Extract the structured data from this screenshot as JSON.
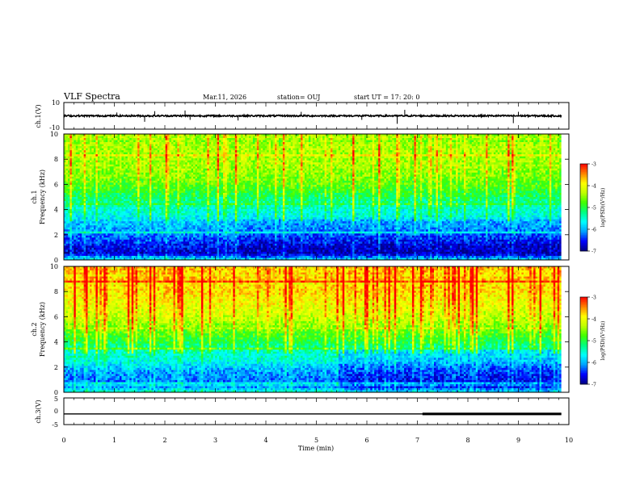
{
  "header": {
    "title": "VLF Spectra",
    "date": "Mar.11, 2026",
    "station": "station= OUJ",
    "start": "start  UT =   17: 20: 0"
  },
  "chart_data": [
    {
      "type": "line",
      "panel": "ch1-waveform",
      "ylabel": "ch.1(V)",
      "ylim": [
        -10,
        10
      ],
      "yticks": [
        "10",
        "-10"
      ],
      "x_range_min": [
        0,
        9.85
      ],
      "baseline_v": 0,
      "noise_amplitude_v": 0.6,
      "spikes": [
        {
          "t": 1.05,
          "v": 2.5
        },
        {
          "t": 1.6,
          "v": -4.5
        },
        {
          "t": 1.8,
          "v": 3.5
        },
        {
          "t": 2.4,
          "v": 4.0
        },
        {
          "t": 2.5,
          "v": -3.0
        },
        {
          "t": 3.45,
          "v": -3.5
        },
        {
          "t": 4.7,
          "v": 3.0
        },
        {
          "t": 5.9,
          "v": -3.0
        },
        {
          "t": 6.6,
          "v": -6.0
        },
        {
          "t": 6.75,
          "v": 4.5
        },
        {
          "t": 8.9,
          "v": -5.5
        },
        {
          "t": 9.0,
          "v": 3.0
        }
      ]
    },
    {
      "type": "heatmap",
      "panel": "ch1-spectrogram",
      "ylabel": "ch.1\nFrequency (kHz)",
      "ylim": [
        0,
        10
      ],
      "yticks": [
        "0",
        "2",
        "4",
        "6",
        "8",
        "10"
      ],
      "x_range_min": [
        0,
        9.85
      ],
      "value_name": "log(PSD)(V²/Hz)",
      "zlim": [
        -7,
        -3
      ],
      "colorbar_ticks": [
        "-3",
        "-4",
        "-5",
        "-6",
        "-7"
      ],
      "freq_profile_khz": [
        0,
        0.5,
        1,
        1.5,
        2,
        2.5,
        3,
        3.5,
        4,
        4.5,
        5,
        5.5,
        6,
        6.5,
        7,
        7.5,
        8,
        8.5,
        9,
        9.5,
        10
      ],
      "level_profile": [
        -5.6,
        -6.7,
        -6.6,
        -6.4,
        -6.2,
        -6.0,
        -5.9,
        -5.6,
        -5.5,
        -5.3,
        -5.1,
        -4.9,
        -4.7,
        -4.6,
        -4.5,
        -4.4,
        -4.4,
        -4.4,
        -4.4,
        -4.4,
        -4.4
      ]
    },
    {
      "type": "heatmap",
      "panel": "ch2-spectrogram",
      "ylabel": "ch.2\nFrequency (kHz)",
      "ylim": [
        0,
        10
      ],
      "yticks": [
        "0",
        "2",
        "4",
        "6",
        "8",
        "10"
      ],
      "x_range_min": [
        0,
        9.85
      ],
      "value_name": "log(PSD)(V²/Hz)",
      "zlim": [
        -7,
        -3
      ],
      "colorbar_ticks": [
        "-3",
        "-4",
        "-5",
        "-6",
        "-7"
      ],
      "freq_profile_khz": [
        0,
        0.5,
        1,
        1.5,
        2,
        2.5,
        3,
        3.5,
        4,
        4.5,
        5,
        5.5,
        6,
        6.5,
        7,
        7.5,
        8,
        8.5,
        9,
        9.5,
        10
      ],
      "level_profile": [
        -5.4,
        -6.3,
        -6.2,
        -6.1,
        -5.9,
        -5.6,
        -5.5,
        -5.3,
        -5.0,
        -4.8,
        -4.6,
        -4.4,
        -4.2,
        -4.1,
        -4.0,
        -3.9,
        -3.8,
        -3.8,
        -3.7,
        -3.7,
        -3.7
      ]
    },
    {
      "type": "line",
      "panel": "ch3-trace",
      "ylabel": "ch.3(V)",
      "xlabel": "Time  (min)",
      "ylim": [
        -5,
        5
      ],
      "yticks": [
        "5",
        "0",
        "-5"
      ],
      "x_range_min": [
        0,
        9.85
      ],
      "level_v": -1,
      "thick_from_min": 7.1,
      "xlim": [
        0,
        10
      ],
      "xticks": [
        "0",
        "1",
        "2",
        "3",
        "4",
        "5",
        "6",
        "7",
        "8",
        "9",
        "10"
      ]
    }
  ],
  "colors": {
    "colormap": [
      "#000080",
      "#0000ff",
      "#00a0ff",
      "#00ffff",
      "#00ff80",
      "#40ff00",
      "#c0ff00",
      "#ffff00",
      "#ff8000",
      "#ff0000",
      "#ffffff"
    ]
  }
}
